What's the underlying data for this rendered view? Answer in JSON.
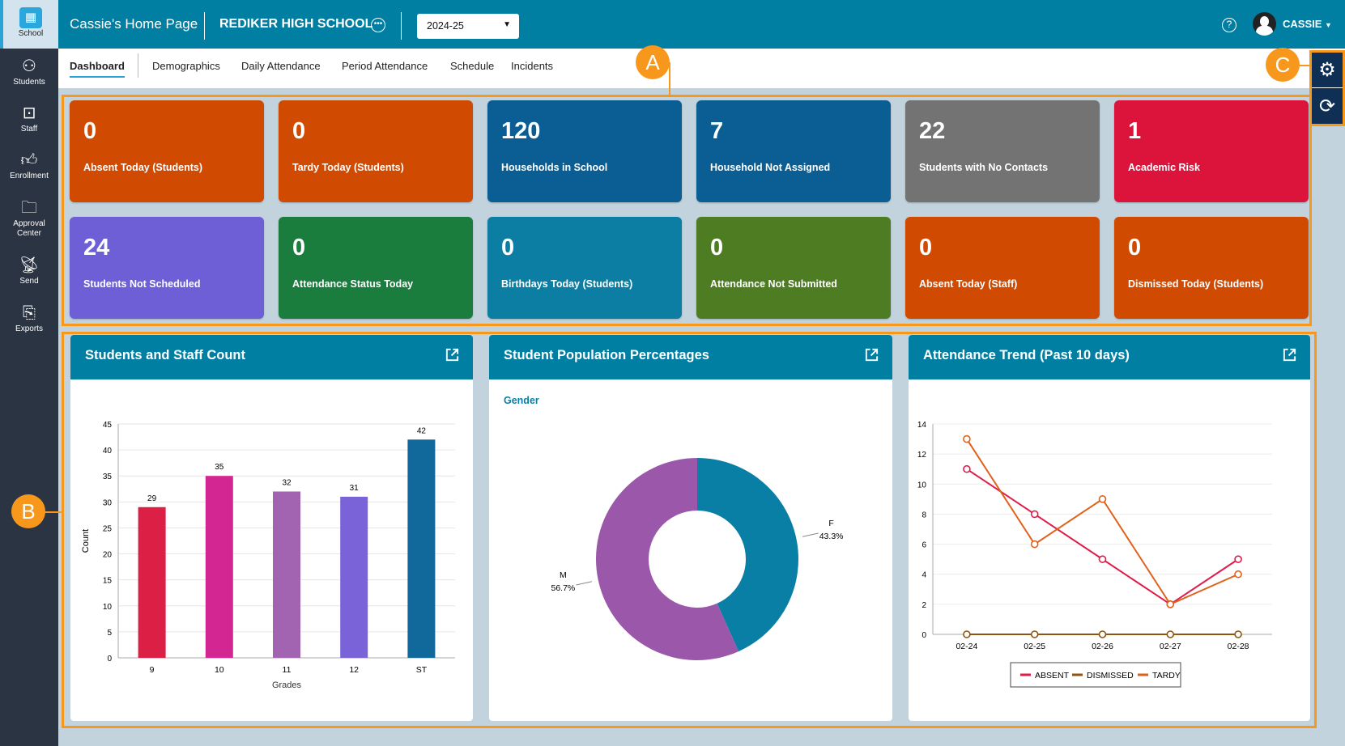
{
  "sidebar": {
    "items": [
      {
        "label": "School",
        "icon": "school-icon"
      },
      {
        "label": "Students",
        "icon": "students-icon"
      },
      {
        "label": "Staff",
        "icon": "staff-icon"
      },
      {
        "label": "Enrollment",
        "icon": "thumbs-up-icon"
      },
      {
        "label": "Approval Center",
        "icon": "folder-icon"
      },
      {
        "label": "Send",
        "icon": "satellite-icon"
      },
      {
        "label": "Exports",
        "icon": "export-icon"
      }
    ]
  },
  "header": {
    "page_title": "Cassie's Home Page",
    "school_name": "REDIKER HIGH SCHOOL",
    "year": "2024-25",
    "user": "CASSIE"
  },
  "tabs": [
    "Dashboard",
    "Demographics",
    "Daily Attendance",
    "Period Attendance",
    "Schedule",
    "Incidents"
  ],
  "tiles": [
    {
      "value": "0",
      "label": "Absent Today (Students)",
      "color": "#d04a02"
    },
    {
      "value": "0",
      "label": "Tardy Today (Students)",
      "color": "#d04a02"
    },
    {
      "value": "120",
      "label": "Households in School",
      "color": "#0b5e94"
    },
    {
      "value": "7",
      "label": "Household Not Assigned",
      "color": "#0b5e94"
    },
    {
      "value": "22",
      "label": "Students with No Contacts",
      "color": "#737373"
    },
    {
      "value": "1",
      "label": "Academic Risk",
      "color": "#dc143c"
    },
    {
      "value": "24",
      "label": "Students Not Scheduled",
      "color": "#6e5fd6"
    },
    {
      "value": "0",
      "label": "Attendance Status Today",
      "color": "#1a7d3e"
    },
    {
      "value": "0",
      "label": "Birthdays Today (Students)",
      "color": "#0c7ea3"
    },
    {
      "value": "0",
      "label": "Attendance Not Submitted",
      "color": "#4e7c22"
    },
    {
      "value": "0",
      "label": "Absent Today (Staff)",
      "color": "#d04a02"
    },
    {
      "value": "0",
      "label": "Dismissed Today (Students)",
      "color": "#d04a02"
    }
  ],
  "annotations": [
    "A",
    "B",
    "C"
  ],
  "panels": [
    "Students and Staff Count",
    "Student Population Percentages",
    "Attendance Trend (Past 10 days)"
  ],
  "chart_data": [
    {
      "type": "bar",
      "title": "Students and Staff Count",
      "categories": [
        "9",
        "10",
        "11",
        "12",
        "ST"
      ],
      "values": [
        29,
        35,
        32,
        31,
        42
      ],
      "xlabel": "Grades",
      "ylabel": "Count",
      "ylim": [
        0,
        45
      ],
      "yticks": [
        0,
        5,
        10,
        15,
        20,
        25,
        30,
        35,
        40,
        45
      ],
      "colors": [
        "#dc1f45",
        "#d42692",
        "#a263b0",
        "#7a63d8",
        "#11689a"
      ]
    },
    {
      "type": "pie",
      "title": "Student Population Percentages",
      "subtitle": "Gender",
      "slices": [
        {
          "label": "F",
          "value": 43.3,
          "text": "43.3%",
          "color": "#0a7fa5"
        },
        {
          "label": "M",
          "value": 56.7,
          "text": "56.7%",
          "color": "#9b57a9"
        }
      ]
    },
    {
      "type": "line",
      "title": "Attendance Trend (Past 10 days)",
      "x": [
        "02-24",
        "02-25",
        "02-26",
        "02-27",
        "02-28"
      ],
      "ylim": [
        0,
        14
      ],
      "yticks": [
        0,
        2,
        4,
        6,
        8,
        10,
        12,
        14
      ],
      "series": [
        {
          "name": "ABSENT",
          "values": [
            11,
            8,
            5,
            2,
            5
          ],
          "color": "#e01c4a"
        },
        {
          "name": "DISMISSED",
          "values": [
            0,
            0,
            0,
            0,
            0
          ],
          "color": "#8f5410"
        },
        {
          "name": "TARDY",
          "values": [
            13,
            6,
            9,
            2,
            4
          ],
          "color": "#e0621a"
        }
      ],
      "legend": "bottom"
    }
  ]
}
